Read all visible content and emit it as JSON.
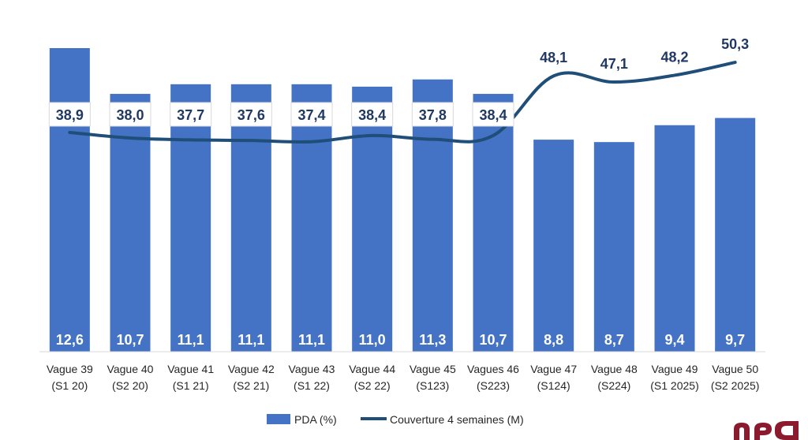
{
  "chart_data": {
    "type": "bar",
    "categories": [
      [
        "Vague 39",
        "(S1 20)"
      ],
      [
        "Vague 40",
        "(S2 20)"
      ],
      [
        "Vague 41",
        "(S1 21)"
      ],
      [
        "Vague 42",
        "(S2 21)"
      ],
      [
        "Vague 43",
        "(S1 22)"
      ],
      [
        "Vague 44",
        "(S2 22)"
      ],
      [
        "Vague 45",
        "(S123)"
      ],
      [
        "Vagues 46",
        "(S223)"
      ],
      [
        "Vague 47",
        "(S124)"
      ],
      [
        "Vague 48",
        "(S224)"
      ],
      [
        "Vague 49",
        "(S1 2025)"
      ],
      [
        "Vague 50",
        "(S2 2025)"
      ]
    ],
    "series": [
      {
        "name": "PDA (%)",
        "kind": "bar",
        "color": "#4472c4",
        "values": [
          12.6,
          10.7,
          11.1,
          11.1,
          11.1,
          11.0,
          11.3,
          10.7,
          8.8,
          8.7,
          9.4,
          9.7
        ],
        "labels": [
          "12,6",
          "10,7",
          "11,1",
          "11,1",
          "11,1",
          "11,0",
          "11,3",
          "10,7",
          "8,8",
          "8,7",
          "9,4",
          "9,7"
        ]
      },
      {
        "name": "Couverture 4 semaines (M)",
        "kind": "line",
        "color": "#1f4e79",
        "values": [
          38.9,
          38.0,
          37.7,
          37.6,
          37.4,
          38.4,
          37.8,
          38.4,
          48.1,
          47.1,
          48.2,
          50.3
        ],
        "labels": [
          "38,9",
          "38,0",
          "37,7",
          "37,6",
          "37,4",
          "38,4",
          "37,8",
          "38,4",
          "48,1",
          "47,1",
          "48,2",
          "50,3"
        ],
        "boxed_labels": [
          true,
          true,
          true,
          true,
          true,
          true,
          true,
          true,
          false,
          false,
          false,
          false
        ]
      }
    ],
    "title": "",
    "xlabel": "",
    "ylabel": "",
    "legend_position": "bottom",
    "grid": false,
    "logo_color": "#8b1a2f"
  }
}
